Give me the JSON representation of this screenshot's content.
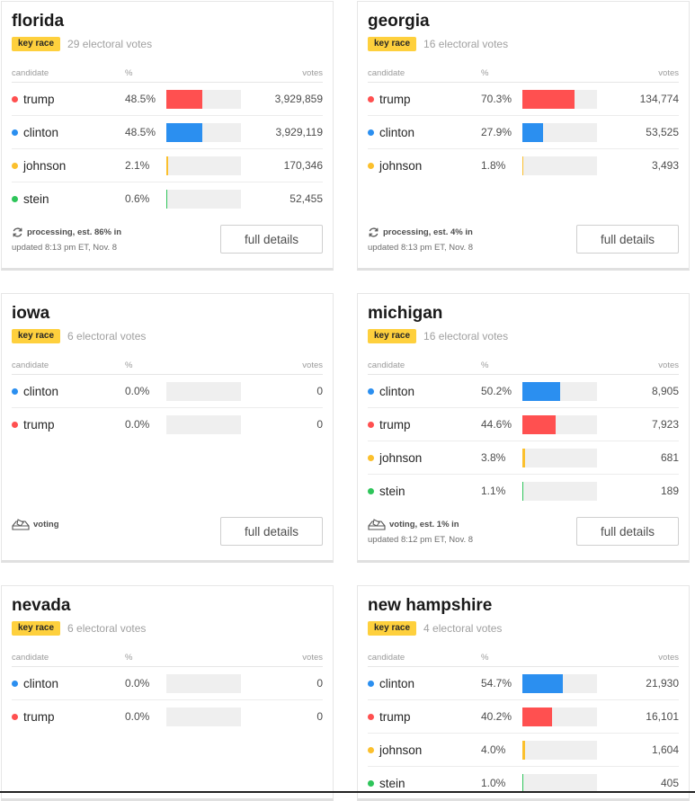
{
  "colors": {
    "trump": "#ff5050",
    "clinton": "#2b8ff0",
    "johnson": "#fbc02d",
    "stein": "#2ec55a",
    "badge": "#fed03d"
  },
  "columns": {
    "candidate": "candidate",
    "pct": "%",
    "votes": "votes"
  },
  "cards": [
    {
      "state": "florida",
      "badge": "key race",
      "ev": "29 electoral votes",
      "rows": [
        {
          "name": "trump",
          "pct": "48.5%",
          "share": 48.5,
          "votes": "3,929,859"
        },
        {
          "name": "clinton",
          "pct": "48.5%",
          "share": 48.5,
          "votes": "3,929,119"
        },
        {
          "name": "johnson",
          "pct": "2.1%",
          "share": 2.1,
          "votes": "170,346"
        },
        {
          "name": "stein",
          "pct": "0.6%",
          "share": 0.6,
          "votes": "52,455"
        }
      ],
      "status": "processing, est. 86% in",
      "status_icon": "refresh-icon",
      "updated": "updated 8:13 pm ET, Nov. 8",
      "button": "full details"
    },
    {
      "state": "georgia",
      "badge": "key race",
      "ev": "16 electoral votes",
      "rows": [
        {
          "name": "trump",
          "pct": "70.3%",
          "share": 70.3,
          "votes": "134,774"
        },
        {
          "name": "clinton",
          "pct": "27.9%",
          "share": 27.9,
          "votes": "53,525"
        },
        {
          "name": "johnson",
          "pct": "1.8%",
          "share": 1.8,
          "votes": "3,493"
        }
      ],
      "status": "processing, est. 4% in",
      "status_icon": "refresh-icon",
      "updated": "updated 8:13 pm ET, Nov. 8",
      "button": "full details"
    },
    {
      "state": "iowa",
      "badge": "key race",
      "ev": "6 electoral votes",
      "rows": [
        {
          "name": "clinton",
          "pct": "0.0%",
          "share": 0,
          "votes": "0"
        },
        {
          "name": "trump",
          "pct": "0.0%",
          "share": 0,
          "votes": "0"
        }
      ],
      "status": "voting",
      "status_icon": "ballot-icon",
      "updated": "",
      "button": "full details"
    },
    {
      "state": "michigan",
      "badge": "key race",
      "ev": "16 electoral votes",
      "rows": [
        {
          "name": "clinton",
          "pct": "50.2%",
          "share": 50.2,
          "votes": "8,905"
        },
        {
          "name": "trump",
          "pct": "44.6%",
          "share": 44.6,
          "votes": "7,923"
        },
        {
          "name": "johnson",
          "pct": "3.8%",
          "share": 3.8,
          "votes": "681"
        },
        {
          "name": "stein",
          "pct": "1.1%",
          "share": 1.1,
          "votes": "189"
        }
      ],
      "status": "voting, est. 1% in",
      "status_icon": "ballot-icon",
      "updated": "updated 8:12 pm ET, Nov. 8",
      "button": "full details"
    },
    {
      "state": "nevada",
      "badge": "key race",
      "ev": "6 electoral votes",
      "rows": [
        {
          "name": "clinton",
          "pct": "0.0%",
          "share": 0,
          "votes": "0"
        },
        {
          "name": "trump",
          "pct": "0.0%",
          "share": 0,
          "votes": "0"
        }
      ],
      "status": "",
      "status_icon": "",
      "updated": "",
      "button": ""
    },
    {
      "state": "new hampshire",
      "badge": "key race",
      "ev": "4 electoral votes",
      "rows": [
        {
          "name": "clinton",
          "pct": "54.7%",
          "share": 54.7,
          "votes": "21,930"
        },
        {
          "name": "trump",
          "pct": "40.2%",
          "share": 40.2,
          "votes": "16,101"
        },
        {
          "name": "johnson",
          "pct": "4.0%",
          "share": 4.0,
          "votes": "1,604"
        },
        {
          "name": "stein",
          "pct": "1.0%",
          "share": 1.0,
          "votes": "405"
        }
      ],
      "status": "",
      "status_icon": "",
      "updated": "",
      "button": ""
    }
  ]
}
